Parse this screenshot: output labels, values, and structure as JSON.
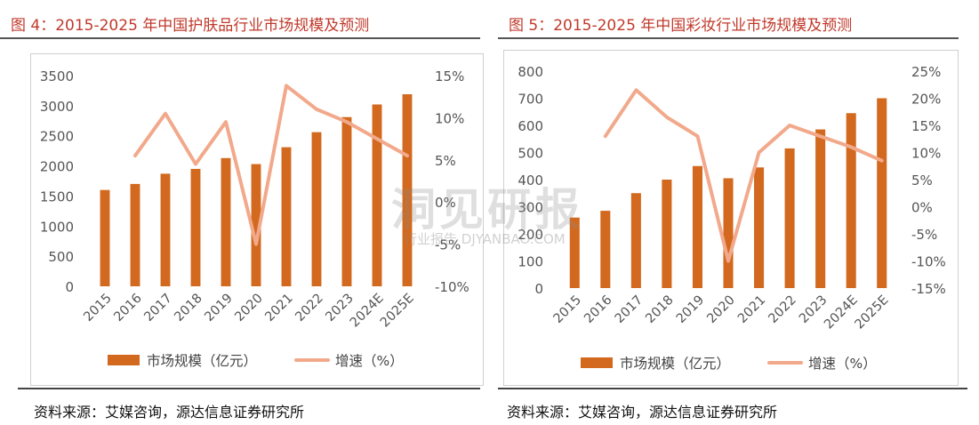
{
  "charts": [
    {
      "title": "图 4：2015-2025 年中国护肤品行业市场规模及预测",
      "source": "资料来源：艾媒咨询，源达信息证券研究所",
      "chart_data": {
        "type": "bar",
        "categories": [
          "2015",
          "2016",
          "2017",
          "2018",
          "2019",
          "2020",
          "2021",
          "2022",
          "2023",
          "2024E",
          "2025E"
        ],
        "series": [
          {
            "name": "市场规模（亿元）",
            "type": "bar",
            "axis": "left",
            "values": [
              1600,
              1700,
              1870,
              1950,
              2130,
              2030,
              2310,
              2560,
              2810,
              3020,
              3190
            ]
          },
          {
            "name": "增速（%）",
            "type": "line",
            "axis": "right",
            "values": [
              null,
              5.5,
              10.5,
              4.5,
              9.5,
              -5.0,
              13.8,
              11.0,
              9.5,
              7.5,
              5.5
            ]
          }
        ],
        "left_axis": {
          "min": 0,
          "max": 3500,
          "ticks": [
            "0",
            "500",
            "1000",
            "1500",
            "2000",
            "2500",
            "3000",
            "3500"
          ]
        },
        "right_axis": {
          "min": -10,
          "max": 15,
          "ticks": [
            "-10%",
            "-5%",
            "0%",
            "5%",
            "10%",
            "15%"
          ]
        },
        "legend_position": "bottom",
        "colors": {
          "bar": "#D2691E",
          "line": "#F2A98B"
        }
      }
    },
    {
      "title": "图 5：2015-2025 年中国彩妆行业市场规模及预测",
      "source": "资料来源：艾媒咨询，源达信息证券研究所",
      "chart_data": {
        "type": "bar",
        "categories": [
          "2015",
          "2016",
          "2017",
          "2018",
          "2019",
          "2020",
          "2021",
          "2022",
          "2023",
          "2024E",
          "2025E"
        ],
        "series": [
          {
            "name": "市场规模（亿元）",
            "type": "bar",
            "axis": "left",
            "values": [
              260,
              285,
              350,
              400,
              450,
              405,
              445,
              515,
              585,
              645,
              700
            ]
          },
          {
            "name": "增速（%）",
            "type": "line",
            "axis": "right",
            "values": [
              null,
              13.0,
              21.5,
              16.5,
              13.0,
              -10.0,
              10.0,
              15.0,
              13.0,
              11.0,
              8.5
            ]
          }
        ],
        "left_axis": {
          "min": 0,
          "max": 800,
          "ticks": [
            "0",
            "100",
            "200",
            "300",
            "400",
            "500",
            "600",
            "700",
            "800"
          ]
        },
        "right_axis": {
          "min": -15,
          "max": 25,
          "ticks": [
            "-15%",
            "-10%",
            "-5%",
            "0%",
            "5%",
            "10%",
            "15%",
            "20%",
            "25%"
          ]
        },
        "legend_position": "bottom",
        "colors": {
          "bar": "#D2691E",
          "line": "#F2A98B"
        }
      }
    }
  ],
  "watermark": {
    "main": "洞见研报",
    "sub": "行业报告 DJYANBAO.COM"
  }
}
